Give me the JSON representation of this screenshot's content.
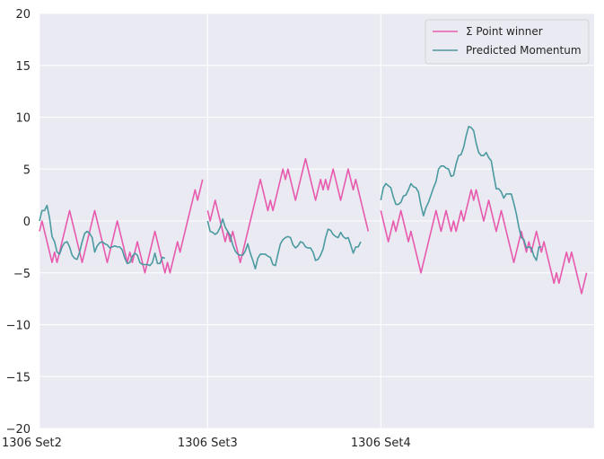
{
  "chart_data": {
    "type": "line",
    "x_tick_labels": [
      "1306 Set2",
      "1306 Set3",
      "1306 Set4"
    ],
    "x_ticks": [
      0,
      67,
      136
    ],
    "xlim": [
      0,
      221
    ],
    "ylim": [
      -20,
      20
    ],
    "y_ticks": [
      -20,
      -15,
      -10,
      -5,
      0,
      5,
      10,
      15,
      20
    ],
    "y_tick_labels": [
      "−20",
      "−15",
      "−10",
      "−5",
      "0",
      "5",
      "10",
      "15",
      "20"
    ],
    "grid": true,
    "legend_position": "top-right",
    "series": [
      {
        "name": "Σ Point winner",
        "color": "#e75aae",
        "segments": [
          {
            "x_start": 0,
            "values": [
              -1,
              0,
              -1,
              -2,
              -3,
              -4,
              -3,
              -4,
              -3,
              -2,
              -1,
              0,
              1,
              0,
              -1,
              -2,
              -3,
              -4,
              -3,
              -2,
              -1,
              0,
              1,
              0,
              -1,
              -2,
              -3,
              -4,
              -3,
              -2,
              -1,
              0,
              -1,
              -2,
              -3,
              -4,
              -3,
              -4,
              -3,
              -2,
              -3,
              -4,
              -5,
              -4,
              -3,
              -2,
              -1,
              -2,
              -3,
              -4,
              -5,
              -4,
              -5,
              -4,
              -3,
              -2,
              -3,
              -2,
              -1,
              0,
              1,
              2,
              3,
              2,
              3,
              4
            ]
          },
          {
            "x_start": 67,
            "values": [
              1,
              0,
              1,
              2,
              1,
              0,
              -1,
              -2,
              -1,
              -2,
              -1,
              -2,
              -3,
              -4,
              -3,
              -2,
              -1,
              0,
              1,
              2,
              3,
              4,
              3,
              2,
              1,
              2,
              1,
              2,
              3,
              4,
              5,
              4,
              5,
              4,
              3,
              2,
              3,
              4,
              5,
              6,
              5,
              4,
              3,
              2,
              3,
              4,
              3,
              4,
              3,
              4,
              5,
              4,
              3,
              2,
              3,
              4,
              5,
              4,
              3,
              4,
              3,
              2,
              1,
              0,
              -1
            ]
          },
          {
            "x_start": 136,
            "values": [
              1,
              0,
              -1,
              -2,
              -1,
              0,
              -1,
              0,
              1,
              0,
              -1,
              -2,
              -1,
              -2,
              -3,
              -4,
              -5,
              -4,
              -3,
              -2,
              -1,
              0,
              1,
              0,
              -1,
              0,
              1,
              0,
              -1,
              0,
              -1,
              0,
              1,
              0,
              1,
              2,
              3,
              2,
              3,
              2,
              1,
              0,
              1,
              2,
              1,
              0,
              -1,
              0,
              1,
              0,
              -1,
              -2,
              -3,
              -4,
              -3,
              -2,
              -1,
              -2,
              -3,
              -2,
              -3,
              -2,
              -1,
              -2,
              -3,
              -2,
              -3,
              -4,
              -5,
              -6,
              -5,
              -6,
              -5,
              -4,
              -3,
              -4,
              -3,
              -4,
              -5,
              -6,
              -7,
              -6,
              -5
            ]
          }
        ]
      },
      {
        "name": "Predicted Momentum",
        "color": "#4a9aa0",
        "segments": [
          {
            "x_start": 0,
            "values": [
              0,
              1,
              1,
              1.5,
              0.3,
              -1.5,
              -2,
              -3,
              -3.2,
              -2.5,
              -2.1,
              -2,
              -2.5,
              -3.3,
              -3.6,
              -3.7,
              -3,
              -2,
              -1.2,
              -1,
              -1.2,
              -1.6,
              -3,
              -2.4,
              -2.1,
              -2,
              -2.2,
              -2.3,
              -2.6,
              -2.5,
              -2.4,
              -2.5,
              -2.5,
              -2.8,
              -3.6,
              -4.1,
              -4,
              -3.4,
              -3.1,
              -3.3,
              -4,
              -4.2,
              -4.2,
              -4.2,
              -4.3,
              -4,
              -3.1,
              -4.1,
              -4.1,
              -3.5,
              -3.6
            ]
          },
          {
            "x_start": 67,
            "values": [
              0,
              -1,
              -1.1,
              -1.3,
              -1.1,
              -0.6,
              0.2,
              -0.6,
              -1,
              -1.4,
              -2.3,
              -2.9,
              -3.2,
              -3.3,
              -3.3,
              -2.9,
              -2.2,
              -3.1,
              -3.8,
              -4.6,
              -3.6,
              -3.2,
              -3.2,
              -3.2,
              -3.4,
              -3.5,
              -4.2,
              -4.3,
              -3.2,
              -2.2,
              -1.8,
              -1.6,
              -1.5,
              -1.6,
              -2.3,
              -2.6,
              -2.4,
              -2,
              -2.1,
              -2.5,
              -2.6,
              -2.6,
              -3,
              -3.8,
              -3.7,
              -3.3,
              -2.7,
              -1.6,
              -0.8,
              -0.9,
              -1.3,
              -1.5,
              -1.6,
              -1.1,
              -1.5,
              -1.7,
              -1.6,
              -2.3,
              -3.1,
              -2.5,
              -2.5,
              -2
            ]
          },
          {
            "x_start": 136,
            "values": [
              2,
              3.2,
              3.6,
              3.4,
              3.2,
              2.3,
              1.6,
              1.6,
              1.8,
              2.4,
              2.5,
              3,
              3.6,
              3.3,
              3.2,
              2.8,
              1.5,
              0.5,
              1.3,
              1.8,
              2.5,
              3.2,
              3.8,
              5,
              5.3,
              5.3,
              5.1,
              5,
              4.3,
              4.4,
              5.5,
              6.3,
              6.4,
              7.1,
              8.2,
              9.1,
              9,
              8.7,
              7.5,
              6.6,
              6.3,
              6.3,
              6.6,
              6.1,
              5.8,
              4.4,
              3.1,
              3.1,
              2.8,
              2.2,
              2.6,
              2.6,
              2.6,
              1.7,
              0.7,
              -0.6,
              -1.6,
              -1.8,
              -2.6,
              -2.5,
              -2.6,
              -3.4,
              -3.8,
              -2.5,
              -2.5
            ]
          }
        ]
      }
    ]
  },
  "legend": {
    "items": [
      "Σ Point winner",
      "Predicted Momentum"
    ]
  },
  "colors": {
    "background": "#eaeaf2",
    "grid": "#ffffff",
    "text": "#262626"
  }
}
